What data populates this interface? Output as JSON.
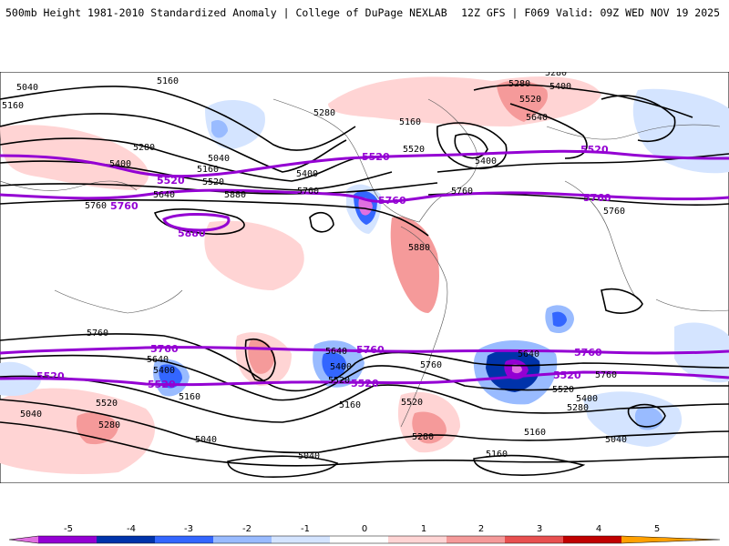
{
  "header": {
    "left_title": "500mb Height 1981-2010 Standardized Anomaly | College of DuPage NEXLAB",
    "right_title": "12Z GFS | F069 Valid: 09Z WED NOV 19 2025"
  },
  "contours": {
    "black_labels": [
      "5040",
      "5160",
      "5160",
      "5280",
      "5280",
      "5400",
      "5520",
      "5640",
      "5400",
      "5520",
      "5160",
      "5040",
      "5280",
      "5400",
      "5640",
      "5760",
      "5880",
      "5400",
      "5520",
      "5760",
      "5880",
      "5760",
      "5160",
      "5280",
      "5760",
      "5640",
      "5400",
      "5520",
      "5760",
      "5640",
      "5400",
      "5520",
      "5520",
      "5160",
      "5040",
      "5280",
      "5280",
      "5160",
      "5040",
      "5160",
      "5280",
      "5400",
      "5520",
      "5640",
      "5760",
      "5040",
      "5040",
      "5160",
      "5760"
    ],
    "purple_labels": [
      "5520",
      "5520",
      "5520",
      "5520",
      "5760",
      "5760",
      "5760",
      "5880",
      "5760",
      "5760",
      "5760",
      "5520",
      "5520",
      "5520"
    ]
  },
  "colorbar": {
    "ticks": [
      "-5",
      "-4",
      "-3",
      "-2",
      "-1",
      "0",
      "1",
      "2",
      "3",
      "4",
      "5"
    ],
    "colors": [
      "#e070e0",
      "#9400d3",
      "#0033aa",
      "#3366ff",
      "#99bbff",
      "#d4e4ff",
      "#ffffff",
      "#ffd4d4",
      "#f59a9a",
      "#e85050",
      "#c00000",
      "#ffa000"
    ]
  }
}
